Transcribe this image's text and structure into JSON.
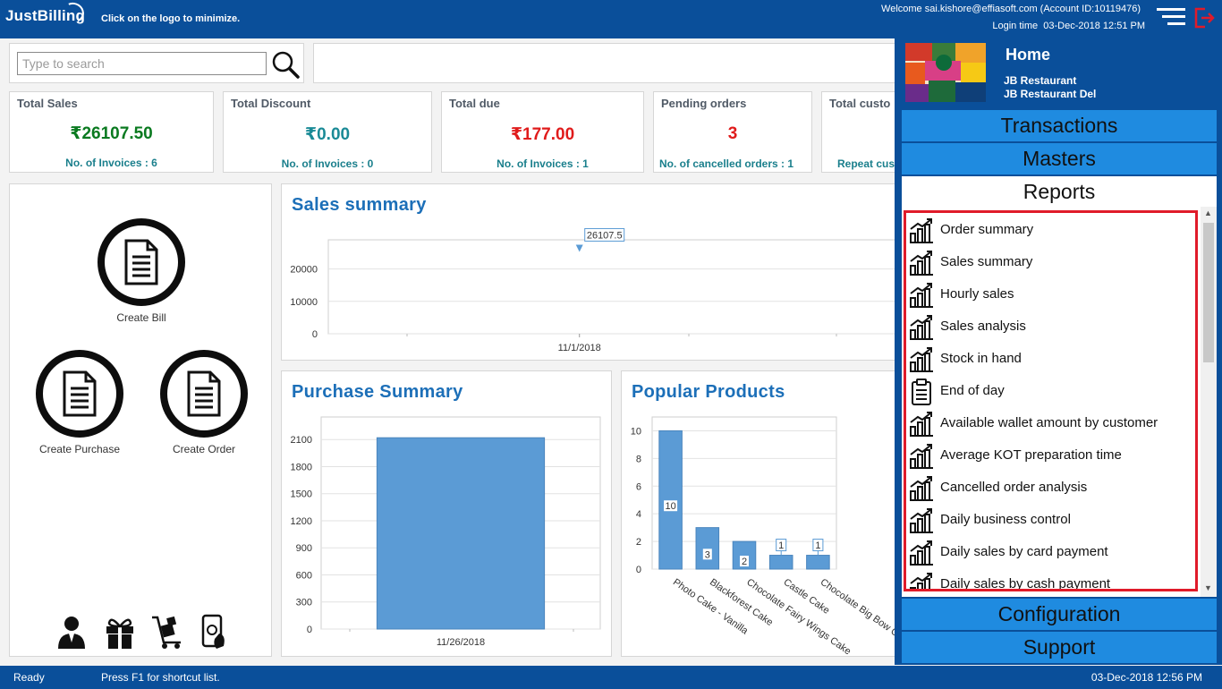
{
  "header": {
    "logo": "JustBilling",
    "hint": "Click on the logo to minimize.",
    "welcome": "Welcome sai.kishore@effiasoft.com (Account ID:10119476)",
    "login_label": "Login time",
    "login_time": "03-Dec-2018 12:51 PM"
  },
  "search": {
    "placeholder": "Type to search"
  },
  "stats": [
    {
      "title": "Total Sales",
      "value": "₹26107.50",
      "sub": "No. of Invoices : 6",
      "color": "#0a7a20"
    },
    {
      "title": "Total Discount",
      "value": "₹0.00",
      "sub": "No. of Invoices : 0",
      "color": "#1a8a96"
    },
    {
      "title": "Total due",
      "value": "₹177.00",
      "sub": "No. of Invoices : 1",
      "color": "#e01b1b"
    },
    {
      "title": "Pending orders",
      "value": "3",
      "sub": "No. of cancelled orders : 1",
      "color": "#e01b1b"
    },
    {
      "title": "Total custo",
      "value": "",
      "sub": "Repeat cus",
      "color": "#1a8a96"
    }
  ],
  "shortcuts": {
    "create_bill": "Create Bill",
    "create_purchase": "Create Purchase",
    "create_order": "Create Order"
  },
  "sales_summary": {
    "title": "Sales summary",
    "chart_data": {
      "type": "line",
      "x": [
        "11/1/2018"
      ],
      "series": [
        {
          "values": [
            26107.5
          ]
        }
      ],
      "data_labels": [
        "26107.5"
      ],
      "y_ticks": [
        0,
        10000,
        20000
      ],
      "ylim": [
        0,
        29000
      ],
      "grid": true
    }
  },
  "purchase_summary": {
    "title": "Purchase Summary",
    "chart_data": {
      "type": "bar",
      "categories": [
        "11/26/2018"
      ],
      "values": [
        2120
      ],
      "y_ticks": [
        0,
        300,
        600,
        900,
        1200,
        1500,
        1800,
        2100
      ],
      "ylim": [
        0,
        2350
      ],
      "grid": true
    }
  },
  "popular_products": {
    "title": "Popular Products",
    "chart_data": {
      "type": "bar",
      "categories": [
        "Photo Cake - Vanilla",
        "Blackforest Cake",
        "Chocolate Fairy Wings Cake",
        "Castle Cake",
        "Chocolate Big Bow C"
      ],
      "values": [
        10,
        3,
        2,
        1,
        1
      ],
      "data_labels": [
        "10",
        "3",
        "2",
        "1",
        "1"
      ],
      "y_ticks": [
        0,
        2,
        4,
        6,
        8,
        10
      ],
      "ylim": [
        0,
        11
      ],
      "grid": true
    }
  },
  "sidebar": {
    "home": "Home",
    "business_1": "JB Restaurant",
    "business_2": "JB Restaurant Del",
    "sections": {
      "transactions": "Transactions",
      "masters": "Masters",
      "reports": "Reports",
      "configuration": "Configuration",
      "support": "Support"
    },
    "reports": [
      {
        "label": "Order summary",
        "icon": "chart-icon"
      },
      {
        "label": "Sales summary",
        "icon": "chart-icon"
      },
      {
        "label": "Hourly sales",
        "icon": "chart-icon"
      },
      {
        "label": "Sales analysis",
        "icon": "chart-icon"
      },
      {
        "label": "Stock in hand",
        "icon": "chart-icon"
      },
      {
        "label": "End of day",
        "icon": "clipboard-icon"
      },
      {
        "label": "Available wallet amount by customer",
        "icon": "chart-icon"
      },
      {
        "label": "Average KOT preparation time",
        "icon": "chart-icon"
      },
      {
        "label": "Cancelled order analysis",
        "icon": "chart-icon"
      },
      {
        "label": "Daily business control",
        "icon": "chart-icon"
      },
      {
        "label": "Daily sales by card payment",
        "icon": "chart-icon"
      },
      {
        "label": "Daily sales by cash payment",
        "icon": "chart-icon"
      }
    ]
  },
  "statusbar": {
    "ready": "Ready",
    "hint": "Press F1 for shortcut list.",
    "datetime": "03-Dec-2018 12:56 PM"
  },
  "colors": {
    "brand_blue": "#0a4f9a",
    "nav_blue": "#1f8be0",
    "chart_blue": "#5b9bd5",
    "highlight_red": "#e01b2a"
  }
}
